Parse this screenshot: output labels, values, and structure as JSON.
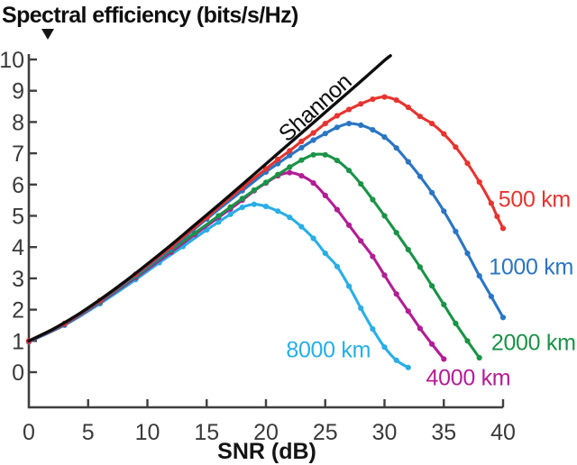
{
  "title": "Spectral efficiency (bits/s/Hz)",
  "chart_data": {
    "type": "line",
    "title": "Spectral efficiency (bits/s/Hz)",
    "xlabel": "SNR (dB)",
    "ylabel": "Spectral efficiency (bits/s/Hz)",
    "xlim": [
      0,
      40
    ],
    "ylim": [
      0,
      10
    ],
    "x_ticks": [
      0,
      5,
      10,
      15,
      20,
      25,
      30,
      35,
      40
    ],
    "y_ticks": [
      0,
      1,
      2,
      3,
      4,
      5,
      6,
      7,
      8,
      9,
      10
    ],
    "grid": false,
    "legend_position": "labels-on-curves",
    "axis_color": "#3f3f3f",
    "series": [
      {
        "name": "shannon",
        "label": "Shannon",
        "color": "#0d0d0d",
        "markers": false,
        "line_width": 3.4,
        "label_anchor": {
          "x": 24.2,
          "y": 8.45,
          "rotate": -42,
          "align": "center"
        },
        "points": [
          [
            0,
            1.0
          ],
          [
            2,
            1.37
          ],
          [
            4,
            1.81
          ],
          [
            6,
            2.32
          ],
          [
            8,
            2.87
          ],
          [
            10,
            3.46
          ],
          [
            12,
            4.07
          ],
          [
            14,
            4.71
          ],
          [
            16,
            5.35
          ],
          [
            18,
            6.0
          ],
          [
            20,
            6.66
          ],
          [
            22,
            7.32
          ],
          [
            24,
            7.98
          ],
          [
            26,
            8.64
          ],
          [
            28,
            9.3
          ],
          [
            30,
            9.97
          ],
          [
            30.5,
            10.12
          ]
        ]
      },
      {
        "name": "500km",
        "label": "500 km",
        "color": "#e6342f",
        "markers": true,
        "line_width": 3.1,
        "label_anchor": {
          "x": 39.6,
          "y": 5.5,
          "rotate": 0,
          "align": "left"
        },
        "points": [
          [
            0,
            1.0
          ],
          [
            3,
            1.56
          ],
          [
            6,
            2.29
          ],
          [
            9,
            3.13
          ],
          [
            12,
            4.0
          ],
          [
            15,
            4.95
          ],
          [
            18,
            5.9
          ],
          [
            20,
            6.5
          ],
          [
            21,
            6.8
          ],
          [
            22,
            7.08
          ],
          [
            23,
            7.38
          ],
          [
            24,
            7.65
          ],
          [
            25,
            7.95
          ],
          [
            26,
            8.2
          ],
          [
            27,
            8.4
          ],
          [
            28,
            8.58
          ],
          [
            29,
            8.73
          ],
          [
            30,
            8.8
          ],
          [
            31,
            8.7
          ],
          [
            32,
            8.47
          ],
          [
            33,
            8.18
          ],
          [
            34,
            7.95
          ],
          [
            35,
            7.62
          ],
          [
            36,
            7.2
          ],
          [
            37,
            6.68
          ],
          [
            38,
            6.08
          ],
          [
            39,
            5.4
          ],
          [
            39.5,
            4.98
          ],
          [
            40,
            4.6
          ]
        ]
      },
      {
        "name": "1000km",
        "label": "1000 km",
        "color": "#2a75c3",
        "markers": true,
        "line_width": 3.1,
        "label_anchor": {
          "x": 38.8,
          "y": 3.35,
          "rotate": 0,
          "align": "left"
        },
        "points": [
          [
            0,
            1.0
          ],
          [
            3,
            1.55
          ],
          [
            6,
            2.27
          ],
          [
            9,
            3.1
          ],
          [
            12,
            3.96
          ],
          [
            15,
            4.9
          ],
          [
            18,
            5.8
          ],
          [
            20,
            6.4
          ],
          [
            21,
            6.67
          ],
          [
            22,
            6.93
          ],
          [
            23,
            7.18
          ],
          [
            24,
            7.42
          ],
          [
            25,
            7.63
          ],
          [
            26,
            7.83
          ],
          [
            27,
            7.95
          ],
          [
            28,
            7.9
          ],
          [
            29,
            7.75
          ],
          [
            30,
            7.52
          ],
          [
            31,
            7.17
          ],
          [
            32,
            6.73
          ],
          [
            33,
            6.26
          ],
          [
            34,
            5.74
          ],
          [
            35,
            5.15
          ],
          [
            36,
            4.5
          ],
          [
            37,
            3.8
          ],
          [
            38,
            3.08
          ],
          [
            39,
            2.42
          ],
          [
            40,
            1.75
          ]
        ]
      },
      {
        "name": "2000km",
        "label": "2000 km",
        "color": "#1a9347",
        "markers": true,
        "line_width": 3.1,
        "label_anchor": {
          "x": 39.0,
          "y": 0.92,
          "rotate": 0,
          "align": "left"
        },
        "points": [
          [
            0,
            0.99
          ],
          [
            3,
            1.54
          ],
          [
            6,
            2.25
          ],
          [
            9,
            3.06
          ],
          [
            12,
            3.9
          ],
          [
            14,
            4.45
          ],
          [
            16,
            5.0
          ],
          [
            17,
            5.28
          ],
          [
            18,
            5.55
          ],
          [
            19,
            5.82
          ],
          [
            20,
            6.07
          ],
          [
            21,
            6.32
          ],
          [
            22,
            6.56
          ],
          [
            23,
            6.78
          ],
          [
            24,
            6.95
          ],
          [
            25,
            6.95
          ],
          [
            26,
            6.77
          ],
          [
            27,
            6.45
          ],
          [
            28,
            6.02
          ],
          [
            29,
            5.52
          ],
          [
            30,
            5.0
          ],
          [
            31,
            4.46
          ],
          [
            32,
            3.92
          ],
          [
            33,
            3.36
          ],
          [
            34,
            2.76
          ],
          [
            35,
            2.16
          ],
          [
            36,
            1.56
          ],
          [
            37,
            1.0
          ],
          [
            38,
            0.46
          ]
        ]
      },
      {
        "name": "4000km",
        "label": "4000 km",
        "color": "#b21d94",
        "markers": true,
        "line_width": 3.1,
        "label_anchor": {
          "x": 33.5,
          "y": -0.2,
          "rotate": 0,
          "align": "left"
        },
        "points": [
          [
            0,
            0.98
          ],
          [
            3,
            1.52
          ],
          [
            6,
            2.23
          ],
          [
            9,
            3.02
          ],
          [
            12,
            3.84
          ],
          [
            14,
            4.4
          ],
          [
            16,
            4.95
          ],
          [
            17,
            5.22
          ],
          [
            18,
            5.5
          ],
          [
            19,
            5.8
          ],
          [
            20,
            6.05
          ],
          [
            21,
            6.28
          ],
          [
            22,
            6.38
          ],
          [
            23,
            6.28
          ],
          [
            24,
            6.05
          ],
          [
            25,
            5.65
          ],
          [
            26,
            5.2
          ],
          [
            27,
            4.7
          ],
          [
            28,
            4.2
          ],
          [
            29,
            3.7
          ],
          [
            30,
            3.1
          ],
          [
            31,
            2.5
          ],
          [
            32,
            1.95
          ],
          [
            33,
            1.4
          ],
          [
            34,
            0.9
          ],
          [
            35,
            0.42
          ]
        ]
      },
      {
        "name": "8000km",
        "label": "8000 km",
        "color": "#28aee6",
        "markers": true,
        "line_width": 3.1,
        "label_anchor": {
          "x": 21.7,
          "y": 0.7,
          "rotate": 0,
          "align": "left"
        },
        "points": [
          [
            0,
            0.97
          ],
          [
            3,
            1.5
          ],
          [
            6,
            2.19
          ],
          [
            9,
            2.96
          ],
          [
            11,
            3.5
          ],
          [
            13,
            4.02
          ],
          [
            15,
            4.55
          ],
          [
            16,
            4.8
          ],
          [
            17,
            5.05
          ],
          [
            18,
            5.27
          ],
          [
            19,
            5.37
          ],
          [
            20,
            5.3
          ],
          [
            21,
            5.15
          ],
          [
            22,
            4.95
          ],
          [
            23,
            4.65
          ],
          [
            24,
            4.28
          ],
          [
            25,
            3.8
          ],
          [
            26,
            3.38
          ],
          [
            27,
            2.75
          ],
          [
            28,
            2.05
          ],
          [
            29,
            1.38
          ],
          [
            30,
            0.8
          ],
          [
            31,
            0.38
          ],
          [
            32,
            0.15
          ]
        ]
      }
    ]
  }
}
